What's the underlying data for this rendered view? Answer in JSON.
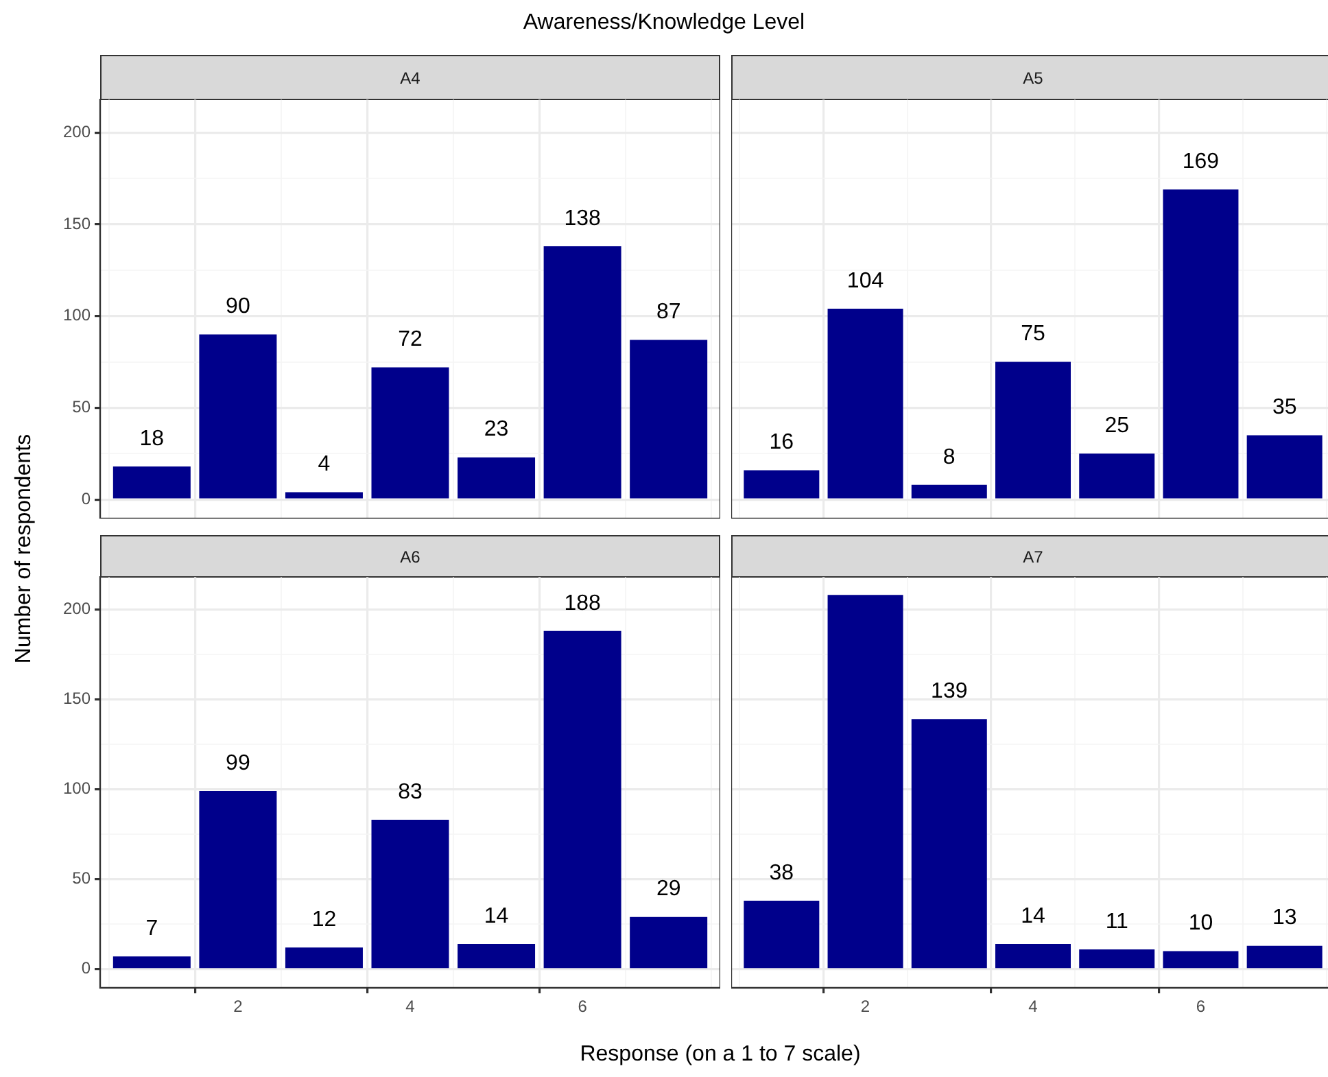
{
  "chart_data": [
    {
      "type": "bar",
      "title": "A4",
      "annotations": [
        "Awareness/Knowledge Level"
      ],
      "ylabel": "Number of respondents",
      "x": [
        1,
        2,
        3,
        4,
        5,
        6,
        7
      ],
      "values": [
        18,
        90,
        4,
        72,
        23,
        138,
        87
      ],
      "value_labels": [
        "18",
        "90",
        "4",
        "72",
        "23",
        "138",
        "87"
      ],
      "color": "#00008b",
      "xlim": [
        0.4,
        7.6
      ],
      "xticks": [
        2,
        4,
        6
      ],
      "ylim": [
        -10.4,
        218.4
      ],
      "yticks": [
        0,
        50,
        100,
        150,
        200
      ],
      "grid": true,
      "tick_labels": "y"
    },
    {
      "type": "bar",
      "title": "A5",
      "x": [
        1,
        2,
        3,
        4,
        5,
        6,
        7
      ],
      "values": [
        16,
        104,
        8,
        75,
        25,
        169,
        35
      ],
      "value_labels": [
        "16",
        "104",
        "8",
        "75",
        "25",
        "169",
        "35"
      ],
      "color": "#00008b",
      "xlim": [
        0.4,
        7.6
      ],
      "xticks": [
        2,
        4,
        6
      ],
      "ylim": [
        -10.4,
        218.4
      ],
      "yticks": [
        0,
        50,
        100,
        150,
        200
      ],
      "grid": true,
      "tick_labels": false
    },
    {
      "type": "bar",
      "title": "A6",
      "xlabel": "Response (on a 1 to 7 scale)",
      "x": [
        1,
        2,
        3,
        4,
        5,
        6,
        7
      ],
      "values": [
        7,
        99,
        12,
        83,
        14,
        188,
        29
      ],
      "value_labels": [
        "7",
        "99",
        "12",
        "83",
        "14",
        "188",
        "29"
      ],
      "color": "#00008b",
      "xlim": [
        0.4,
        7.6
      ],
      "xticks": [
        2,
        4,
        6
      ],
      "ylim": [
        -10.4,
        218.4
      ],
      "yticks": [
        0,
        50,
        100,
        150,
        200
      ],
      "grid": true
    },
    {
      "type": "bar",
      "title": "A7",
      "x": [
        1,
        2,
        3,
        4,
        5,
        6,
        7
      ],
      "values": [
        38,
        208,
        139,
        14,
        11,
        10,
        13
      ],
      "value_labels": [
        "38",
        null,
        "139",
        "14",
        "11",
        "10",
        "13"
      ],
      "color": "#00008b",
      "xlim": [
        0.4,
        7.6
      ],
      "xticks": [
        2,
        4,
        6
      ],
      "ylim": [
        -10.4,
        218.4
      ],
      "yticks": [
        0,
        50,
        100,
        150,
        200
      ],
      "grid": true,
      "tick_labels": "x"
    }
  ]
}
